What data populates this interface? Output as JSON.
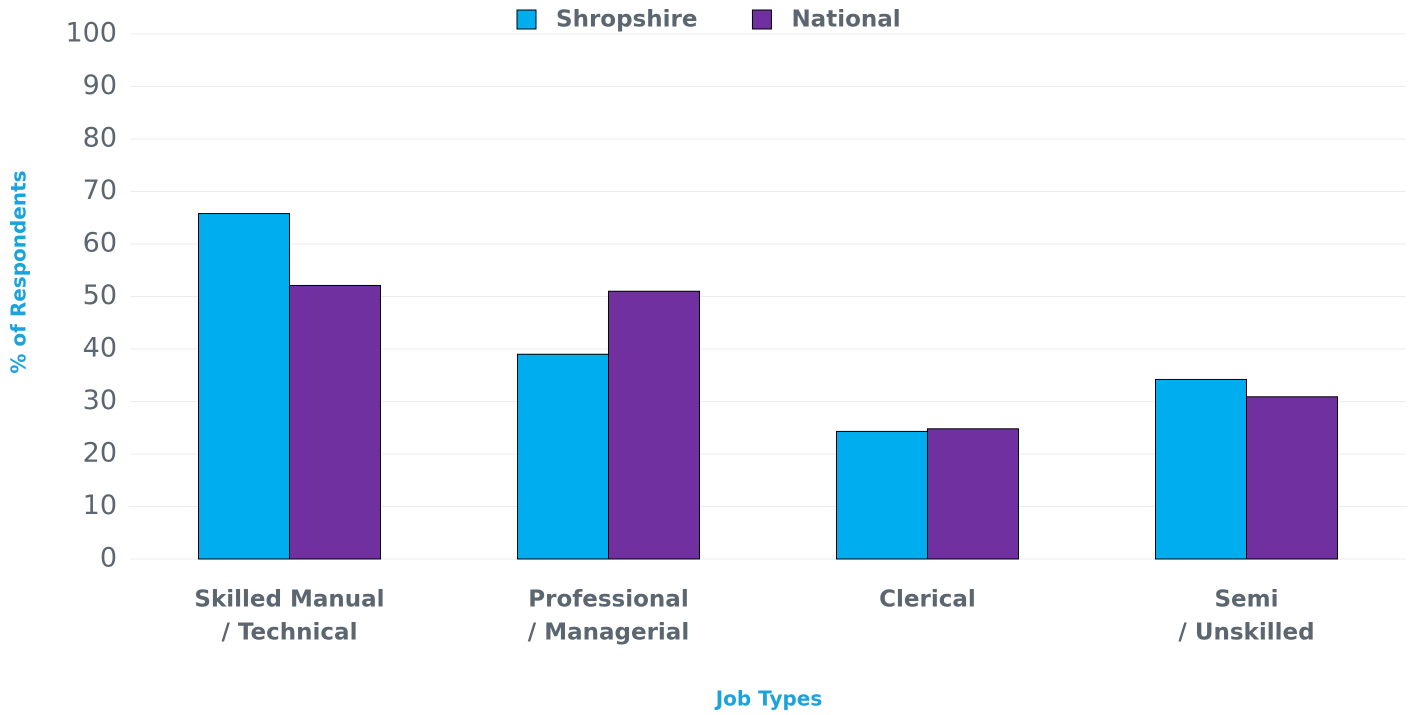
{
  "chart_data": {
    "type": "bar",
    "categories": [
      [
        "Skilled Manual",
        "/ Technical"
      ],
      [
        "Professional",
        "/ Managerial"
      ],
      [
        "Clerical"
      ],
      [
        "Semi",
        "/ Unskilled"
      ]
    ],
    "series": [
      {
        "name": "Shropshire",
        "color": "#00aeef",
        "values": [
          65.8,
          39,
          24.3,
          34.2
        ]
      },
      {
        "name": "National",
        "color": "#7030a0",
        "values": [
          52.1,
          51,
          24.8,
          30.9
        ]
      }
    ],
    "ylim": [
      0,
      100
    ],
    "yticks": [
      0,
      10,
      20,
      30,
      40,
      50,
      60,
      70,
      80,
      90,
      100
    ],
    "grid": true,
    "ylabel": "% of Respondents",
    "xlabel": "Job Types",
    "legend": "top"
  }
}
